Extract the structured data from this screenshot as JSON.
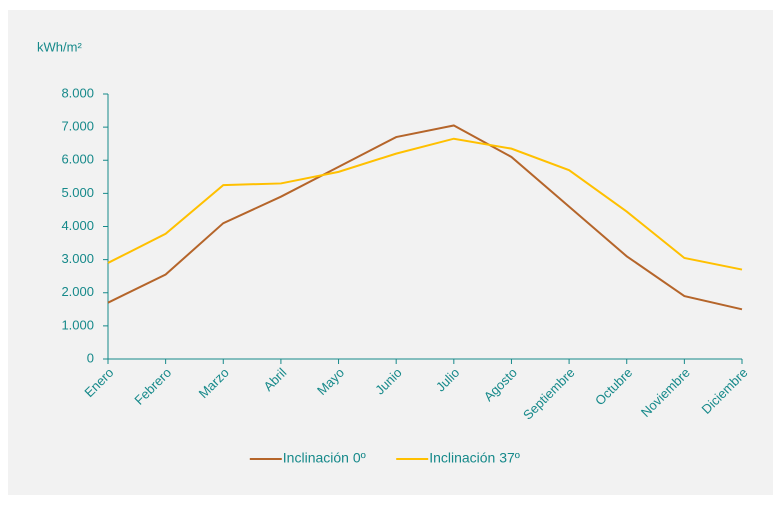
{
  "chart_data": {
    "type": "line",
    "y_label": "kWh/m²",
    "categories": [
      "Enero",
      "Febrero",
      "Marzo",
      "Abril",
      "Mayo",
      "Junio",
      "Julio",
      "Agosto",
      "Septiembre",
      "Octubre",
      "Noviembre",
      "Diciembre"
    ],
    "series": [
      {
        "name": "Inclinación 0º",
        "color": "#b5652a",
        "values": [
          1700,
          2550,
          4100,
          4900,
          5800,
          6700,
          7050,
          6100,
          4600,
          3100,
          1900,
          1500
        ]
      },
      {
        "name": "Inclinación 37º",
        "color": "#ffc000",
        "values": [
          2900,
          3780,
          5250,
          5300,
          5650,
          6200,
          6650,
          6350,
          5700,
          4450,
          3050,
          2700
        ]
      }
    ],
    "ylim": [
      0,
      8000
    ],
    "yticks": [
      0,
      {
        "value": 1000,
        "label": "1.000"
      },
      {
        "value": 2000,
        "label": "2.000"
      },
      {
        "value": 3000,
        "label": "3.000"
      },
      {
        "value": 4000,
        "label": "4.000"
      },
      {
        "value": 5000,
        "label": "5.000"
      },
      {
        "value": 6000,
        "label": "6.000"
      },
      {
        "value": 7000,
        "label": "7.000"
      },
      {
        "value": 8000,
        "label": "8.000"
      }
    ],
    "grid": false,
    "legend": "bottom"
  }
}
